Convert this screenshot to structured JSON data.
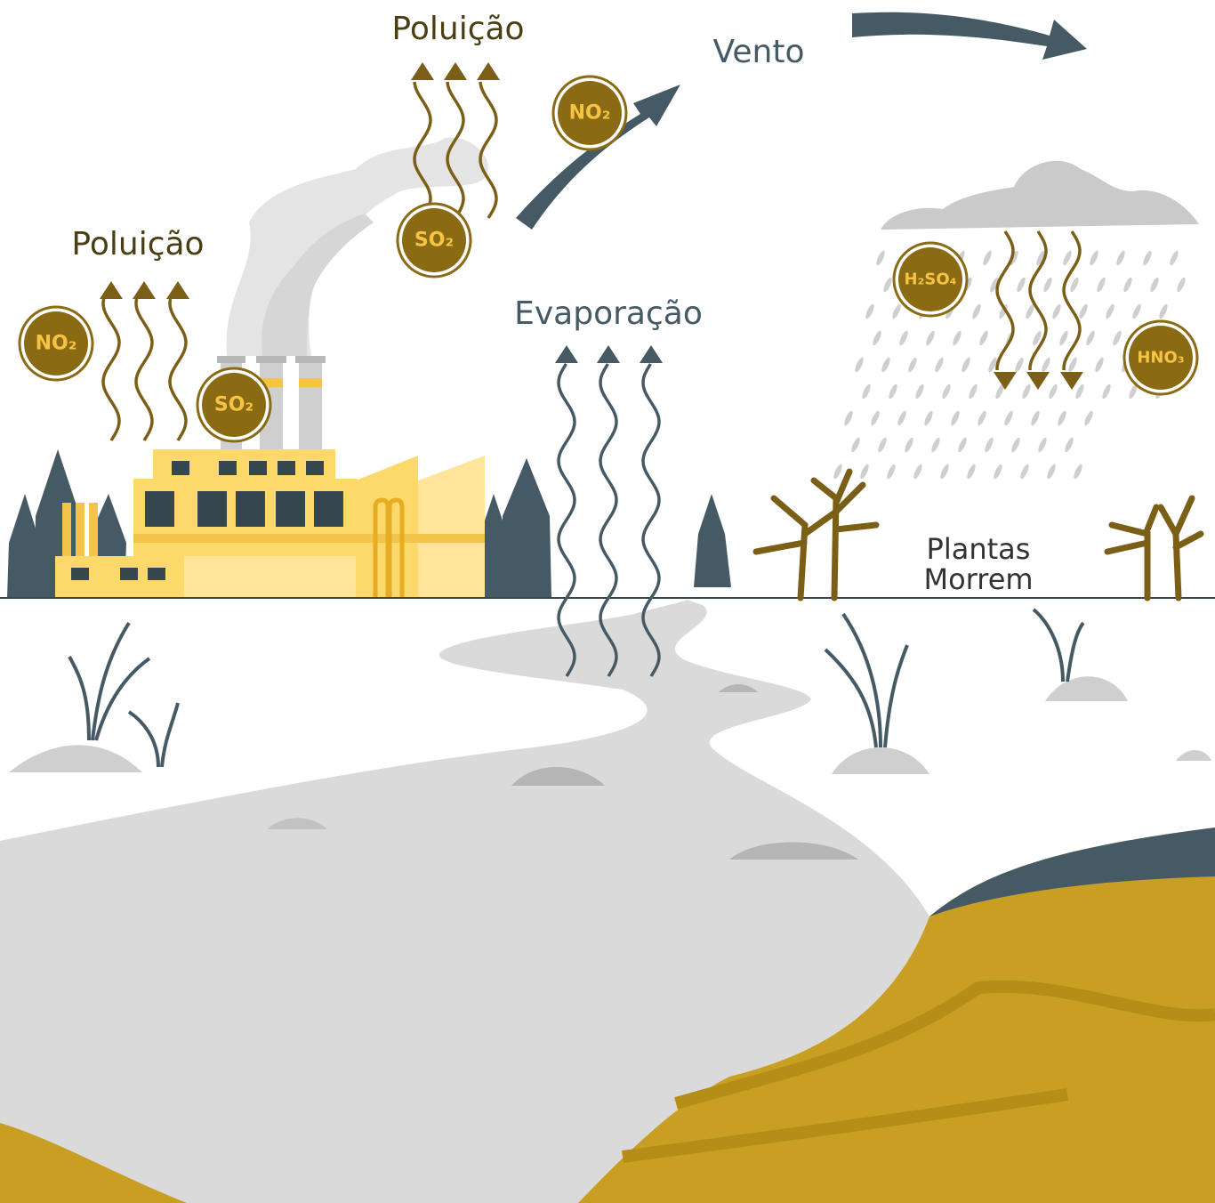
{
  "texts": {
    "pollution_top": "Poluição",
    "pollution_left": "Poluição",
    "wind": "Vento",
    "evaporation": "Evaporação",
    "plants_die": [
      "Plantas",
      "Morrem"
    ]
  },
  "molecules": [
    "NO₂",
    "SO₂",
    "SO₂",
    "NO₂",
    "H₂SO₄",
    "HNO₃"
  ]
}
